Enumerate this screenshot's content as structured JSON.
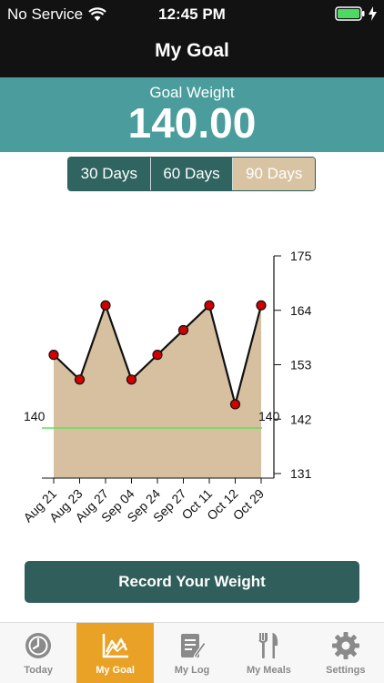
{
  "status": {
    "carrier": "No Service",
    "time": "12:45 PM"
  },
  "nav": {
    "title": "My Goal"
  },
  "goal": {
    "label": "Goal Weight",
    "value": "140.00"
  },
  "segments": [
    {
      "label": "30 Days",
      "selected": false
    },
    {
      "label": "60 Days",
      "selected": false
    },
    {
      "label": "90 Days",
      "selected": true
    }
  ],
  "chart_data": {
    "type": "area",
    "categories": [
      "Aug 21",
      "Aug 23",
      "Aug 27",
      "Sep 04",
      "Sep 24",
      "Sep 27",
      "Oct 11",
      "Oct 12",
      "Oct 29"
    ],
    "series": [
      {
        "values": [
          155,
          150,
          165,
          150,
          155,
          160,
          165,
          145,
          165
        ]
      }
    ],
    "ylim": [
      131,
      175
    ],
    "yticks": [
      "175",
      "164",
      "153",
      "142",
      "131"
    ],
    "goal_line": {
      "value": 140,
      "left_label": "140",
      "right_label": "140"
    },
    "colors": {
      "fill": "#d7c0a0",
      "line": "#111111",
      "point": "#d10000",
      "goal": "#66dd55"
    }
  },
  "record_button": {
    "label": "Record Your Weight"
  },
  "tabs": [
    {
      "label": "Today",
      "icon": "clock-icon",
      "active": false
    },
    {
      "label": "My Goal",
      "icon": "chart-icon",
      "active": true
    },
    {
      "label": "My Log",
      "icon": "notebook-pencil-icon",
      "active": false
    },
    {
      "label": "My Meals",
      "icon": "fork-knife-icon",
      "active": false
    },
    {
      "label": "Settings",
      "icon": "gear-icon",
      "active": false
    }
  ],
  "colors": {
    "accent": "#e9a226",
    "teal": "#4a9d9c",
    "dark_teal": "#2f5e5b"
  }
}
